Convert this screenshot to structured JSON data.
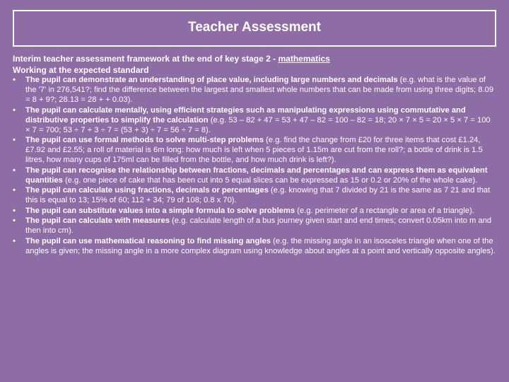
{
  "colors": {
    "background": "#8e6ca5",
    "text": "#ffffff",
    "border": "#ffffff"
  },
  "title": "Teacher Assessment",
  "intro_prefix": "Interim teacher assessment framework at the end of key stage 2 - ",
  "intro_subject": "mathematics",
  "subheading": "Working at the expected standard",
  "bullets": [
    {
      "pre": "The pupil can demonstrate an understanding of place value, including large numbers and decimals",
      "note": "  (e.g. what is the value of the '7' in 276,541?; find the difference between the largest and smallest whole numbers that can be made from using three digits; 8.09 = 8 + 9?; 28.13 = 28 + + 0.03)."
    },
    {
      "pre": "The pupil can calculate mentally, using efficient strategies such as manipulating expressions using commutative and distributive properties to simplify the calculation",
      "note": "  (e.g. 53 – 82 + 47 = 53 + 47 – 82 = 100 – 82 = 18; 20 × 7 × 5 = 20 × 5 × 7 = 100 × 7 = 700; 53 ÷ 7 + 3 ÷ 7 = (53 + 3) ÷ 7 = 56 ÷ 7 = 8)."
    },
    {
      "pre": "The pupil can use formal methods to solve multi-step problems",
      "note": "  (e.g. find the change from £20 for three items that cost £1.24, £7.92 and £2.55; a roll of material is 6m long: how much is left when 5 pieces of 1.15m are cut from the roll?; a bottle of drink is 1.5 litres, how many cups of 175ml can be filled from the bottle, and how much drink is left?)."
    },
    {
      "pre": "The pupil can recognise the relationship between fractions, decimals and percentages and can express them as equivalent quantities",
      "note": " (e.g. one piece of cake that has been cut into 5 equal slices can be expressed as 15 or 0.2 or 20% of the whole cake)."
    },
    {
      "pre": "The pupil can calculate using fractions, decimals or percentages",
      "note": "  (e.g. knowing that 7 divided by 21 is the same as 7 21 and that this is equal to 13; 15% of 60; 112 + 34; 79 of 108; 0.8 x 70)."
    },
    {
      "pre": "The pupil can substitute values into a simple formula to solve problems",
      "note": "  (e.g. perimeter of a rectangle or area of a triangle)."
    },
    {
      "pre": "The pupil can calculate with measures",
      "note": " (e.g. calculate length of a bus journey given start and end times; convert 0.05km into m and then into cm)."
    },
    {
      "pre": "The pupil can use mathematical reasoning to find missing angles",
      "note": "  (e.g. the missing angle in an isosceles triangle when one of the angles is given; the missing angle in a more complex diagram using knowledge about angles at a point and vertically opposite angles)."
    }
  ]
}
